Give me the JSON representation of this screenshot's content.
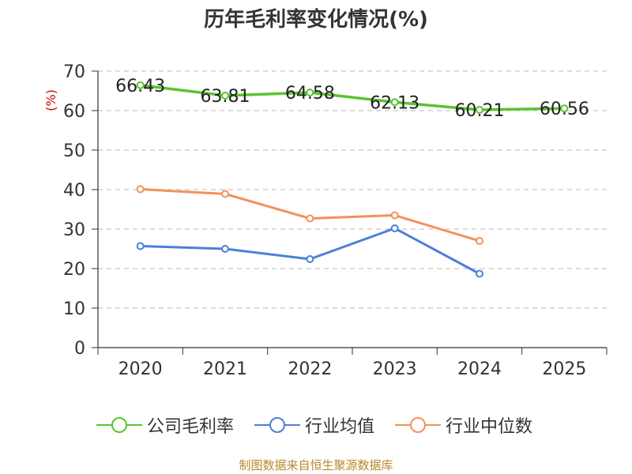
{
  "chart_data": {
    "type": "line",
    "title": "历年毛利率变化情况(%)",
    "xlabel": "",
    "ylabel": "(%)",
    "categories": [
      "2020",
      "2021",
      "2022",
      "2023",
      "2024",
      "2025"
    ],
    "ylim": [
      0,
      70
    ],
    "yticks": [
      0,
      10,
      20,
      30,
      40,
      50,
      60,
      70
    ],
    "grid": true,
    "legend_position": "bottom",
    "series": [
      {
        "name": "公司毛利率",
        "color": "#5ac42f",
        "show_labels": true,
        "values": [
          66.43,
          63.81,
          64.58,
          62.13,
          60.21,
          60.56
        ]
      },
      {
        "name": "行业均值",
        "color": "#4d7fd8",
        "show_labels": false,
        "values": [
          25.7,
          25.0,
          22.4,
          30.2,
          18.7,
          null
        ]
      },
      {
        "name": "行业中位数",
        "color": "#f4905a",
        "show_labels": false,
        "values": [
          40.1,
          38.9,
          32.7,
          33.5,
          27.0,
          null
        ]
      }
    ]
  },
  "source": "制图数据来自恒生聚源数据库"
}
